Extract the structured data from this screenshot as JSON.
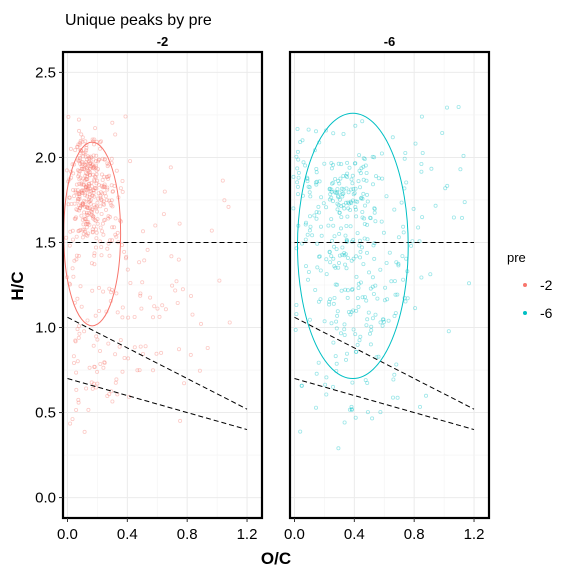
{
  "chart_data": {
    "type": "scatter",
    "title": "Unique peaks by pre",
    "xlabel": "O/C",
    "ylabel": "H/C",
    "xlim": [
      -0.03,
      1.3
    ],
    "ylim": [
      -0.12,
      2.62
    ],
    "x_ticks": [
      "0.0",
      "0.4",
      "0.8",
      "1.2"
    ],
    "y_ticks": [
      "0.0",
      "0.5",
      "1.0",
      "1.5",
      "2.0",
      "2.5"
    ],
    "grid": true,
    "legend": {
      "title": "pre",
      "position": "right",
      "entries": [
        "-2",
        "-6"
      ]
    },
    "reference_lines": [
      {
        "style": "dashed",
        "points": [
          [
            0.0,
            1.5
          ],
          [
            1.2,
            1.5
          ]
        ]
      },
      {
        "style": "dashed",
        "points": [
          [
            0.0,
            1.06
          ],
          [
            1.2,
            0.52
          ]
        ]
      },
      {
        "style": "dashed",
        "points": [
          [
            0.0,
            0.7
          ],
          [
            1.2,
            0.4
          ]
        ]
      }
    ],
    "panels": [
      {
        "label": "-2",
        "color": "#F8766D",
        "ellipse": {
          "cx": 0.165,
          "cy": 1.55,
          "rx": 0.19,
          "ry": 0.54
        },
        "clusters": [
          {
            "cx": 0.17,
            "cy": 1.78,
            "sx": 0.07,
            "sy": 0.16,
            "n": 260
          },
          {
            "cx": 0.12,
            "cy": 1.95,
            "sx": 0.05,
            "sy": 0.08,
            "n": 60
          },
          {
            "cx": 0.25,
            "cy": 1.4,
            "sx": 0.16,
            "sy": 0.35,
            "n": 50
          },
          {
            "cx": 0.55,
            "cy": 1.25,
            "sx": 0.35,
            "sy": 0.45,
            "n": 60
          },
          {
            "cx": 0.12,
            "cy": 0.75,
            "sx": 0.1,
            "sy": 0.25,
            "n": 45
          },
          {
            "cx": 0.45,
            "cy": 0.85,
            "sx": 0.25,
            "sy": 0.2,
            "n": 25
          },
          {
            "cx": 0.05,
            "cy": 1.7,
            "sx": 0.03,
            "sy": 0.35,
            "n": 30
          }
        ]
      },
      {
        "label": "-6",
        "color": "#00BFC4",
        "ellipse": {
          "cx": 0.39,
          "cy": 1.48,
          "rx": 0.37,
          "ry": 0.78
        },
        "clusters": [
          {
            "cx": 0.38,
            "cy": 1.8,
            "sx": 0.1,
            "sy": 0.12,
            "n": 90
          },
          {
            "cx": 0.3,
            "cy": 1.55,
            "sx": 0.2,
            "sy": 0.35,
            "n": 150
          },
          {
            "cx": 0.45,
            "cy": 1.15,
            "sx": 0.2,
            "sy": 0.3,
            "n": 90
          },
          {
            "cx": 0.75,
            "cy": 1.6,
            "sx": 0.25,
            "sy": 0.35,
            "n": 40
          },
          {
            "cx": 0.05,
            "cy": 1.9,
            "sx": 0.05,
            "sy": 0.2,
            "n": 25
          },
          {
            "cx": 0.4,
            "cy": 0.55,
            "sx": 0.2,
            "sy": 0.2,
            "n": 20
          },
          {
            "cx": 1.05,
            "cy": 1.9,
            "sx": 0.15,
            "sy": 0.3,
            "n": 12
          }
        ]
      }
    ]
  }
}
